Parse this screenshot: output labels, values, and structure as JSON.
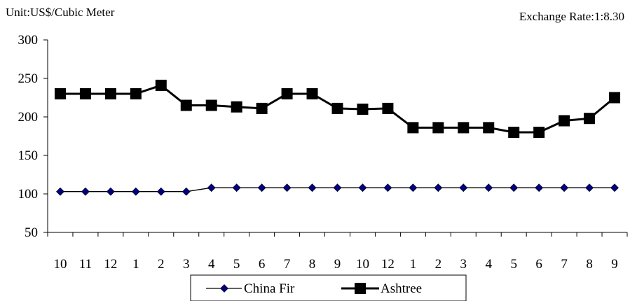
{
  "header": {
    "unit_label": "Unit:US$/Cubic Meter",
    "rate_label": "Exchange Rate:1:8.30"
  },
  "chart_data": {
    "type": "line",
    "title": "",
    "xlabel": "",
    "ylabel": "",
    "categories": [
      "10",
      "11",
      "12",
      "1",
      "2",
      "3",
      "4",
      "5",
      "6",
      "7",
      "8",
      "9",
      "10",
      "12",
      "1",
      "2",
      "3",
      "4",
      "5",
      "6",
      "7",
      "8",
      "9"
    ],
    "ylim": [
      50,
      300
    ],
    "yticks": [
      50,
      100,
      150,
      200,
      250,
      300
    ],
    "grid": false,
    "legend_position": "bottom",
    "series": [
      {
        "name": "China Fir",
        "marker": "diamond",
        "color": "#000080",
        "line_color": "#000000",
        "values": [
          103,
          103,
          103,
          103,
          103,
          103,
          108,
          108,
          108,
          108,
          108,
          108,
          108,
          108,
          108,
          108,
          108,
          108,
          108,
          108,
          108,
          108,
          108
        ]
      },
      {
        "name": "Ashtree",
        "marker": "square",
        "color": "#000000",
        "line_color": "#000000",
        "values": [
          230,
          230,
          230,
          230,
          241,
          215,
          215,
          213,
          211,
          230,
          230,
          211,
          210,
          211,
          186,
          186,
          186,
          186,
          180,
          180,
          195,
          198,
          225
        ]
      }
    ]
  }
}
